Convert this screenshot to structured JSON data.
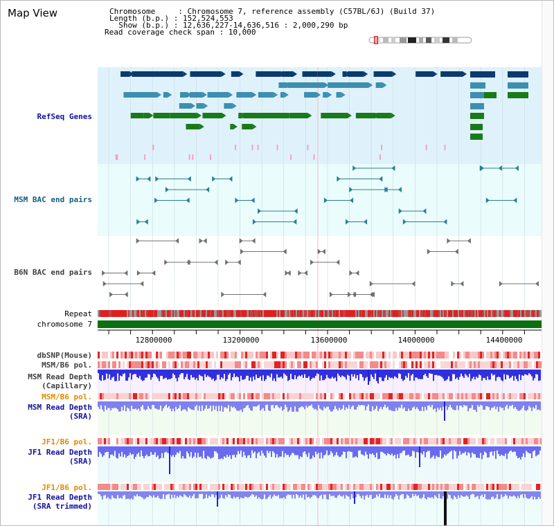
{
  "header": {
    "title": "Map View",
    "chromosome": "Chromosome     : Chromosome 7, reference assembly (C57BL/6J) (Build 37)",
    "length": "Length (b.p.) : 152,524,553",
    "show": "  Show (b.p.) : 12,636,227-14,636,516 : 2,000,290 bp",
    "span": "Read coverage check span : 10,000"
  },
  "tracks": {
    "refseq": "RefSeq Genes",
    "msm_bac": "MSM BAC end pairs",
    "b6n_bac": "B6N BAC end pairs",
    "repeat": "Repeat",
    "chromosome": "chromosome 7",
    "dbsnp": "dbSNP(Mouse)",
    "msm_pol_1": "MSM/B6 pol.",
    "msm_depth_cap_1": "MSM Read Depth",
    "msm_depth_cap_2": "(Capillary)",
    "msm_pol_2": "MSM/B6 pol.",
    "msm_depth_sra_1": "MSM Read Depth",
    "msm_depth_sra_2": "(SRA)",
    "jf1_pol_1": "JF1/B6 pol.",
    "jf1_depth_sra_1": "JF1 Read Depth",
    "jf1_depth_sra_2": "(SRA)",
    "jf1_pol_2": "JF1/B6 pol.",
    "jf1_depth_trim_1": "JF1 Read Depth",
    "jf1_depth_trim_2": "(SRA trimmed)"
  },
  "axis": {
    "ticks": [
      "12800000",
      "13200000",
      "13600000",
      "14000000",
      "14400000"
    ]
  },
  "colors": {
    "refseq_label": "#1010a0",
    "msm_bac_label": "#106080",
    "b6n_bac_label": "#404040",
    "msm_pol_orange": "#e08a00",
    "depth_label": "#1010a0",
    "jf1_pol_label": "#e08a00"
  }
}
